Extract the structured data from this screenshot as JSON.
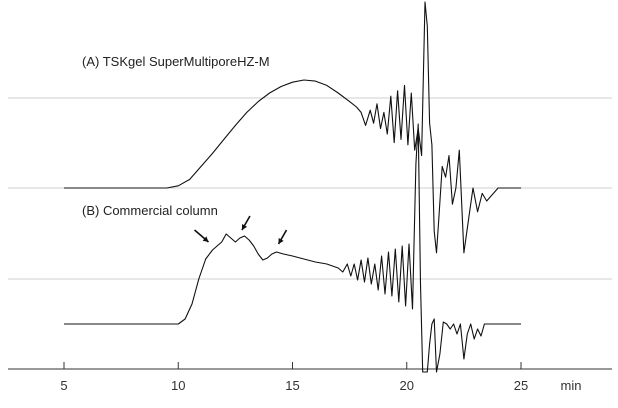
{
  "chart_data": {
    "type": "line",
    "x_unit": "min",
    "xlim": [
      5,
      25
    ],
    "x_ticks": [
      5,
      10,
      15,
      20,
      25
    ],
    "grid": "horizontal",
    "series": [
      {
        "name": "(A) TSKgel SuperMultiporeHZ-M",
        "color": "#111111",
        "baseline_y": 0.0,
        "x": [
          5.0,
          9.5,
          10.0,
          10.5,
          11.0,
          11.5,
          12.0,
          12.5,
          13.0,
          13.5,
          14.0,
          14.5,
          15.0,
          15.5,
          16.0,
          16.5,
          17.0,
          17.5,
          17.8,
          18.0,
          18.2,
          18.4,
          18.55,
          18.7,
          18.85,
          19.0,
          19.15,
          19.3,
          19.45,
          19.6,
          19.75,
          19.9,
          20.05,
          20.2,
          20.35,
          20.5,
          20.65,
          20.8,
          20.9,
          21.0,
          21.1,
          21.2,
          21.3,
          21.4,
          21.55,
          21.7,
          21.85,
          22.0,
          22.15,
          22.3,
          22.5,
          22.7,
          22.9,
          23.1,
          23.3,
          23.5,
          24.0,
          25.0
        ],
        "y": [
          0,
          0,
          0.02,
          0.08,
          0.2,
          0.32,
          0.45,
          0.58,
          0.7,
          0.8,
          0.88,
          0.94,
          0.98,
          1.0,
          0.99,
          0.95,
          0.88,
          0.8,
          0.75,
          0.7,
          0.58,
          0.72,
          0.6,
          0.78,
          0.55,
          0.7,
          0.5,
          0.85,
          0.42,
          0.9,
          0.45,
          0.95,
          0.4,
          0.88,
          0.35,
          0.55,
          0.3,
          2.0,
          1.5,
          0.6,
          0.4,
          -0.4,
          -0.6,
          -0.3,
          0.2,
          0.1,
          0.3,
          -0.15,
          0.0,
          0.35,
          -0.6,
          -0.3,
          0.0,
          -0.22,
          -0.05,
          -0.12,
          0.0,
          0.0
        ]
      },
      {
        "name": "(B) Commercial column",
        "color": "#111111",
        "baseline_y": 0.0,
        "x": [
          5.0,
          10.0,
          10.3,
          10.6,
          10.9,
          11.2,
          11.5,
          11.7,
          11.9,
          12.1,
          12.3,
          12.5,
          12.7,
          12.9,
          13.1,
          13.3,
          13.5,
          13.7,
          13.9,
          14.1,
          14.3,
          14.6,
          15.0,
          15.5,
          16.0,
          16.5,
          17.0,
          17.2,
          17.4,
          17.55,
          17.7,
          17.85,
          18.0,
          18.15,
          18.3,
          18.45,
          18.6,
          18.75,
          18.9,
          19.05,
          19.2,
          19.35,
          19.5,
          19.65,
          19.8,
          19.95,
          20.1,
          20.25,
          20.4,
          20.5,
          20.6,
          20.7,
          20.8,
          20.9,
          21.0,
          21.1,
          21.2,
          21.3,
          21.45,
          21.6,
          21.75,
          21.9,
          22.05,
          22.2,
          22.35,
          22.5,
          22.65,
          22.8,
          22.95,
          23.1,
          23.25,
          23.4,
          23.6,
          24.0,
          25.0
        ],
        "y": [
          0,
          0,
          0.05,
          0.2,
          0.45,
          0.65,
          0.74,
          0.78,
          0.82,
          0.9,
          0.86,
          0.82,
          0.86,
          0.88,
          0.84,
          0.78,
          0.7,
          0.64,
          0.66,
          0.7,
          0.72,
          0.7,
          0.68,
          0.65,
          0.62,
          0.6,
          0.56,
          0.52,
          0.6,
          0.48,
          0.6,
          0.44,
          0.64,
          0.42,
          0.66,
          0.4,
          0.6,
          0.34,
          0.68,
          0.3,
          0.72,
          0.28,
          0.75,
          0.22,
          0.78,
          0.18,
          0.8,
          0.15,
          1.6,
          2.0,
          0.4,
          -0.5,
          -0.6,
          -0.7,
          -0.2,
          0.0,
          0.05,
          -0.5,
          -0.3,
          0.02,
          0.0,
          -0.05,
          0.0,
          -0.1,
          0.0,
          -0.35,
          -0.1,
          0.0,
          -0.15,
          -0.05,
          -0.12,
          0.0,
          0.0,
          0.0,
          0.0
        ]
      }
    ],
    "arrows_x": [
      11.5,
      12.7,
      14.3
    ]
  }
}
